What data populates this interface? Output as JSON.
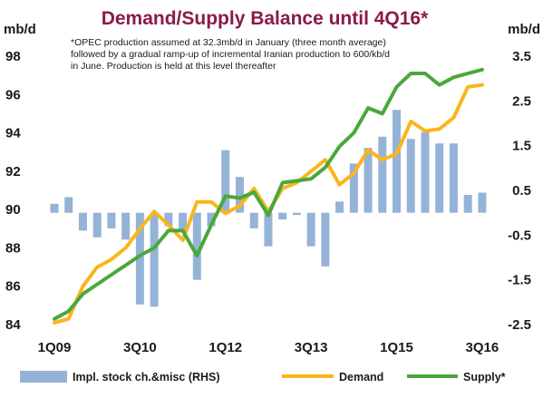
{
  "chart_data": {
    "type": "bar+line",
    "title": "Demand/Supply Balance until 4Q16*",
    "left_axis_unit": "mb/d",
    "right_axis_unit": "mb/d",
    "note_lines": [
      "*OPEC production assumed at 32.3mb/d in January (three month average)",
      "followed by a gradual ramp-up of incremental Iranian production to 600/kb/d",
      "in June. Production is held at this level thereafter"
    ],
    "y_left": {
      "min": 84,
      "max": 98,
      "ticks": [
        "98",
        "96",
        "94",
        "92",
        "90",
        "88",
        "86",
        "84"
      ]
    },
    "y_right": {
      "min": -2.5,
      "max": 3.5,
      "ticks": [
        "3.5",
        "2.5",
        "1.5",
        "0.5",
        "-0.5",
        "-1.5",
        "-2.5"
      ]
    },
    "x_tick_labels": [
      "1Q09",
      "3Q10",
      "1Q12",
      "3Q13",
      "1Q15",
      "3Q16"
    ],
    "x_tick_quarters": [
      0,
      6,
      12,
      18,
      24,
      30
    ],
    "colors": {
      "title": "#8b1a4a",
      "bars": "#95b3d7",
      "demand": "#f9b61c",
      "supply": "#4aa83a"
    },
    "legend": [
      "Impl. stock ch.&misc (RHS)",
      "Demand",
      "Supply*"
    ],
    "series": [
      {
        "name": "Impl. stock ch.&misc (RHS)",
        "axis": "right",
        "values": [
          0.2,
          0.35,
          -0.4,
          -0.55,
          -0.35,
          -0.6,
          -2.05,
          -2.1,
          -0.3,
          -0.4,
          -1.5,
          -0.3,
          1.4,
          0.8,
          -0.35,
          -0.75,
          -0.15,
          -0.05,
          -0.75,
          -1.2,
          0.25,
          1.1,
          1.45,
          1.7,
          2.3,
          1.65,
          1.8,
          1.55,
          1.55,
          0.4,
          0.45
        ]
      },
      {
        "name": "Demand",
        "axis": "left",
        "values": [
          84.1,
          84.3,
          86.0,
          87.0,
          87.4,
          88.0,
          89.0,
          89.9,
          89.2,
          88.4,
          90.4,
          90.4,
          89.8,
          90.2,
          91.1,
          89.9,
          91.1,
          91.4,
          92.0,
          92.6,
          91.3,
          91.9,
          93.1,
          92.6,
          92.9,
          94.6,
          94.1,
          94.2,
          94.8,
          96.4,
          96.5
        ]
      },
      {
        "name": "Supply*",
        "axis": "left",
        "values": [
          84.3,
          84.7,
          85.6,
          86.1,
          86.6,
          87.1,
          87.6,
          88.0,
          88.9,
          88.9,
          87.6,
          89.2,
          90.7,
          90.6,
          90.9,
          89.7,
          91.4,
          91.5,
          91.6,
          92.2,
          93.3,
          94.0,
          95.3,
          95.0,
          96.4,
          97.1,
          97.1,
          96.5,
          96.9,
          97.1,
          97.3
        ]
      }
    ]
  }
}
